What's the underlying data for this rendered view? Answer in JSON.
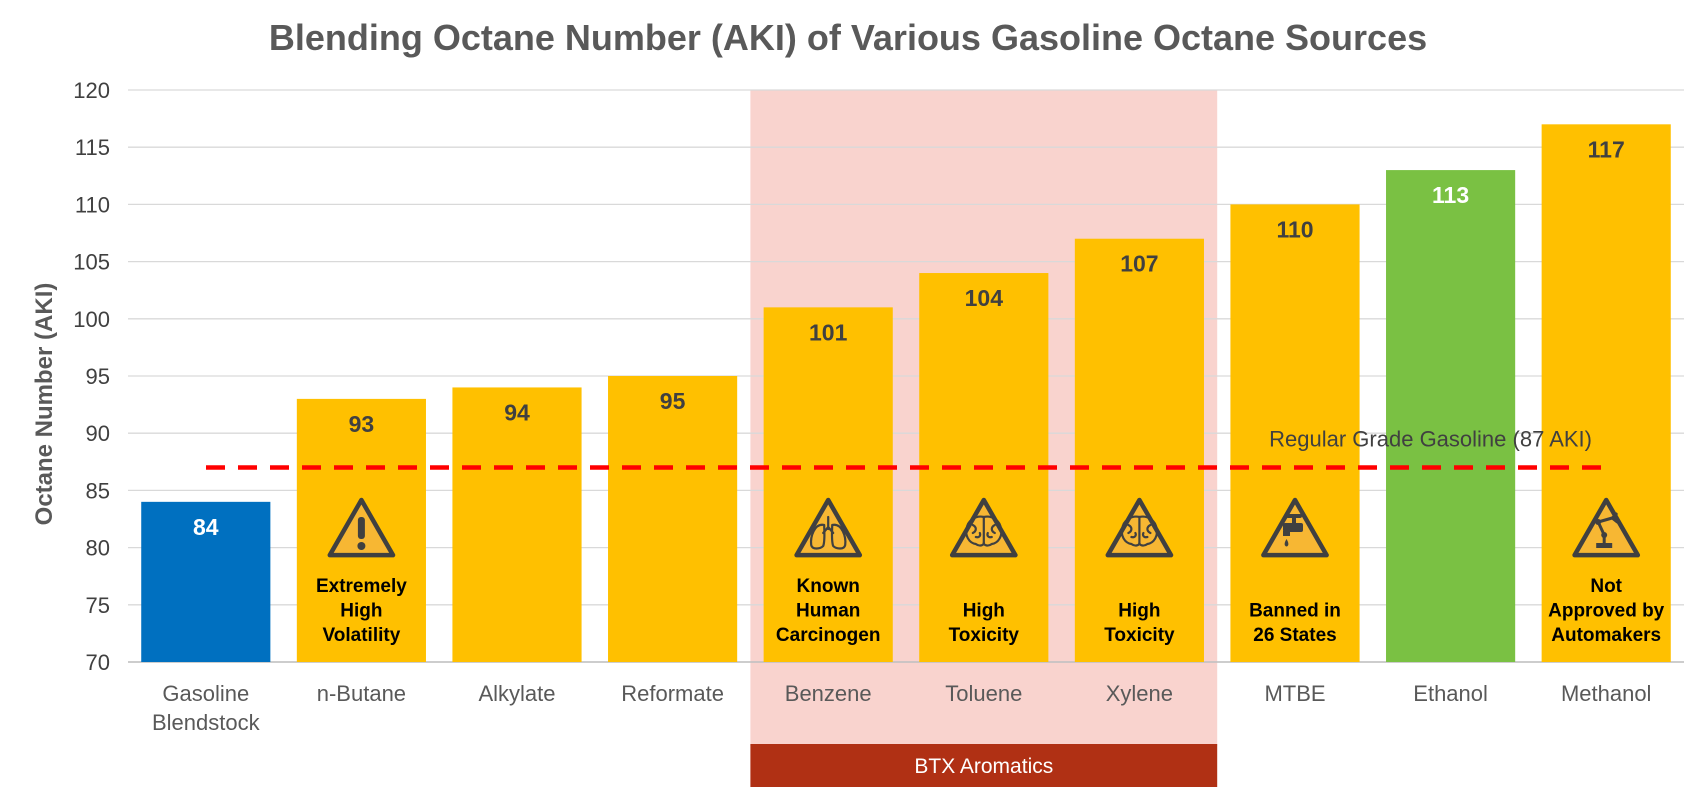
{
  "chart_data": {
    "type": "bar",
    "title": "Blending Octane Number (AKI) of Various Gasoline Octane Sources",
    "ylabel": "Octane Number (AKI)",
    "xlabel": "",
    "ylim": [
      70,
      120
    ],
    "yticks": [
      70,
      75,
      80,
      85,
      90,
      95,
      100,
      105,
      110,
      115,
      120
    ],
    "grid": true,
    "categories": [
      [
        "Gasoline",
        "Blendstock"
      ],
      [
        "n-Butane"
      ],
      [
        "Alkylate"
      ],
      [
        "Reformate"
      ],
      [
        "Benzene"
      ],
      [
        "Toluene"
      ],
      [
        "Xylene"
      ],
      [
        "MTBE"
      ],
      [
        "Ethanol"
      ],
      [
        "Methanol"
      ]
    ],
    "values": [
      84,
      93,
      94,
      95,
      101,
      104,
      107,
      110,
      113,
      117
    ],
    "bar_colors": [
      "#0070C0",
      "#FFC000",
      "#FFC000",
      "#FFC000",
      "#FFC000",
      "#FFC000",
      "#FFC000",
      "#FFC000",
      "#7AC143",
      "#FFC000"
    ],
    "label_colors": [
      "#ffffff",
      "#404040",
      "#404040",
      "#404040",
      "#404040",
      "#404040",
      "#404040",
      "#404040",
      "#ffffff",
      "#404040"
    ],
    "annotations": [
      {
        "index": 1,
        "icon": "warning-exclamation-icon",
        "lines": [
          "Extremely",
          "High",
          "Volatility"
        ]
      },
      {
        "index": 4,
        "icon": "lungs-warning-icon",
        "lines": [
          "Known",
          "Human",
          "Carcinogen"
        ]
      },
      {
        "index": 5,
        "icon": "brain-warning-icon",
        "lines": [
          "High",
          "Toxicity"
        ]
      },
      {
        "index": 6,
        "icon": "brain-warning-icon",
        "lines": [
          "High",
          "Toxicity"
        ]
      },
      {
        "index": 7,
        "icon": "faucet-warning-icon",
        "lines": [
          "Banned in",
          "26 States"
        ]
      },
      {
        "index": 9,
        "icon": "robot-arm-warning-icon",
        "lines": [
          "Not",
          "Approved by",
          "Automakers"
        ]
      }
    ],
    "reference_line": {
      "value": 87,
      "label": "Regular Grade Gasoline (87 AKI)",
      "color": "#FF0000",
      "style": "dashed"
    },
    "group": {
      "label": "BTX Aromatics",
      "from_index": 4,
      "to_index": 6,
      "band_color": "#F9D3CE",
      "label_color": "#B03014"
    }
  }
}
